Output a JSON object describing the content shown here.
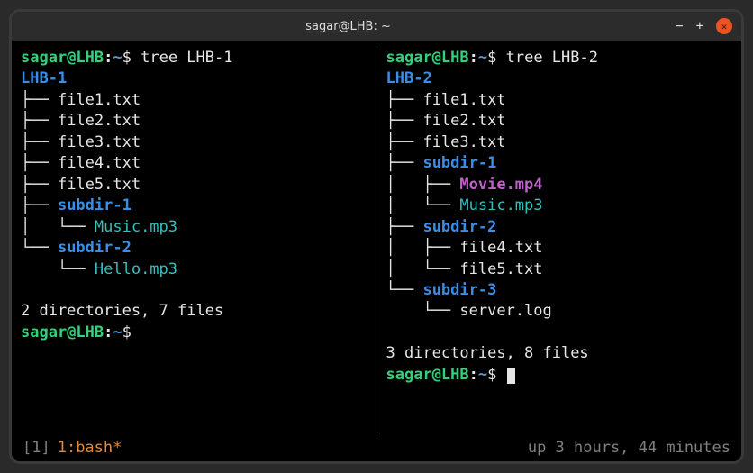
{
  "window": {
    "title": "sagar@LHB: ~"
  },
  "prompt": {
    "user_host": "sagar@LHB",
    "sep": ":",
    "path": "~",
    "symbol": "$"
  },
  "panes": {
    "left": {
      "command": "tree LHB-1",
      "root": "LHB-1",
      "entries": [
        {
          "prefix": "├── ",
          "name": "file1.txt",
          "cls": ""
        },
        {
          "prefix": "├── ",
          "name": "file2.txt",
          "cls": ""
        },
        {
          "prefix": "├── ",
          "name": "file3.txt",
          "cls": ""
        },
        {
          "prefix": "├── ",
          "name": "file4.txt",
          "cls": ""
        },
        {
          "prefix": "├── ",
          "name": "file5.txt",
          "cls": ""
        },
        {
          "prefix": "├── ",
          "name": "subdir-1",
          "cls": "c-dir"
        },
        {
          "prefix": "│   └── ",
          "name": "Music.mp3",
          "cls": "c-media"
        },
        {
          "prefix": "└── ",
          "name": "subdir-2",
          "cls": "c-dir"
        },
        {
          "prefix": "    └── ",
          "name": "Hello.mp3",
          "cls": "c-media"
        }
      ],
      "summary": "2 directories, 7 files"
    },
    "right": {
      "command": "tree LHB-2",
      "root": "LHB-2",
      "entries": [
        {
          "prefix": "├── ",
          "name": "file1.txt",
          "cls": ""
        },
        {
          "prefix": "├── ",
          "name": "file2.txt",
          "cls": ""
        },
        {
          "prefix": "├── ",
          "name": "file3.txt",
          "cls": ""
        },
        {
          "prefix": "├── ",
          "name": "subdir-1",
          "cls": "c-dir"
        },
        {
          "prefix": "│   ├── ",
          "name": "Movie.mp4",
          "cls": "c-movie"
        },
        {
          "prefix": "│   └── ",
          "name": "Music.mp3",
          "cls": "c-media"
        },
        {
          "prefix": "├── ",
          "name": "subdir-2",
          "cls": "c-dir"
        },
        {
          "prefix": "│   ├── ",
          "name": "file4.txt",
          "cls": ""
        },
        {
          "prefix": "│   └── ",
          "name": "file5.txt",
          "cls": ""
        },
        {
          "prefix": "└── ",
          "name": "subdir-3",
          "cls": "c-dir"
        },
        {
          "prefix": "    └── ",
          "name": "server.log",
          "cls": ""
        }
      ],
      "summary": "3 directories, 8 files"
    }
  },
  "statusbar": {
    "session": "[1]",
    "window_tab": "1:bash*",
    "uptime": "up 3 hours, 44 minutes"
  },
  "colors": {
    "bg": "#000000",
    "fg": "#e6e6e6",
    "user": "#33d17a",
    "dir": "#3a8ee6",
    "media": "#34bfbf",
    "movie": "#c061cb",
    "orange": "#e08a3c",
    "dim": "#808080",
    "titlebar": "#2c2c2c",
    "close_btn": "#e95420"
  }
}
